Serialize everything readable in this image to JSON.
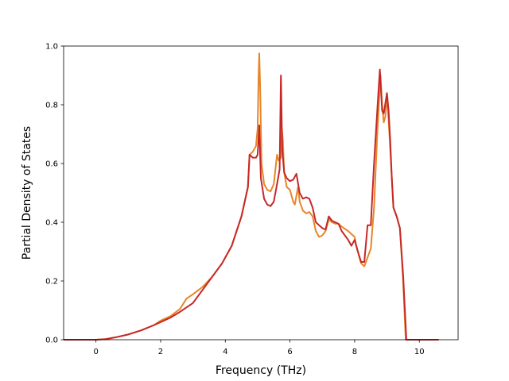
{
  "chart_data": {
    "type": "line",
    "title": "",
    "xlabel": "Frequency (THz)",
    "ylabel": "Partial Density of States",
    "xlim": [
      -1.0,
      11.2
    ],
    "ylim": [
      0.0,
      1.0
    ],
    "xticks": [
      0,
      2,
      4,
      6,
      8,
      10
    ],
    "yticks": [
      0.0,
      0.2,
      0.4,
      0.6,
      0.8,
      1.0
    ],
    "xtick_labels": [
      "0",
      "2",
      "4",
      "6",
      "8",
      "10"
    ],
    "ytick_labels": [
      "0.0",
      "0.2",
      "0.4",
      "0.6",
      "0.8",
      "1.0"
    ],
    "grid": false,
    "legend": "none",
    "series": [
      {
        "color": "#e6862a",
        "points": [
          [
            -1.0,
            0.0
          ],
          [
            0.0,
            0.0
          ],
          [
            0.3,
            0.002
          ],
          [
            0.6,
            0.008
          ],
          [
            1.0,
            0.018
          ],
          [
            1.4,
            0.032
          ],
          [
            1.8,
            0.05
          ],
          [
            2.0,
            0.065
          ],
          [
            2.3,
            0.08
          ],
          [
            2.6,
            0.105
          ],
          [
            2.8,
            0.14
          ],
          [
            3.0,
            0.155
          ],
          [
            3.3,
            0.18
          ],
          [
            3.6,
            0.215
          ],
          [
            3.9,
            0.26
          ],
          [
            4.2,
            0.32
          ],
          [
            4.5,
            0.42
          ],
          [
            4.7,
            0.52
          ],
          [
            4.75,
            0.63
          ],
          [
            4.85,
            0.64
          ],
          [
            4.95,
            0.66
          ],
          [
            5.0,
            0.72
          ],
          [
            5.03,
            0.9
          ],
          [
            5.05,
            0.975
          ],
          [
            5.08,
            0.85
          ],
          [
            5.12,
            0.6
          ],
          [
            5.2,
            0.53
          ],
          [
            5.3,
            0.51
          ],
          [
            5.4,
            0.505
          ],
          [
            5.5,
            0.53
          ],
          [
            5.55,
            0.58
          ],
          [
            5.6,
            0.63
          ],
          [
            5.65,
            0.61
          ],
          [
            5.72,
            0.62
          ],
          [
            5.75,
            0.72
          ],
          [
            5.78,
            0.68
          ],
          [
            5.82,
            0.57
          ],
          [
            5.9,
            0.52
          ],
          [
            6.0,
            0.51
          ],
          [
            6.1,
            0.47
          ],
          [
            6.15,
            0.46
          ],
          [
            6.25,
            0.52
          ],
          [
            6.3,
            0.47
          ],
          [
            6.4,
            0.44
          ],
          [
            6.5,
            0.43
          ],
          [
            6.6,
            0.435
          ],
          [
            6.7,
            0.42
          ],
          [
            6.8,
            0.37
          ],
          [
            6.9,
            0.35
          ],
          [
            7.0,
            0.355
          ],
          [
            7.1,
            0.37
          ],
          [
            7.2,
            0.41
          ],
          [
            7.3,
            0.4
          ],
          [
            7.4,
            0.395
          ],
          [
            7.5,
            0.395
          ],
          [
            7.6,
            0.385
          ],
          [
            7.8,
            0.37
          ],
          [
            7.9,
            0.36
          ],
          [
            8.0,
            0.35
          ],
          [
            8.05,
            0.32
          ],
          [
            8.1,
            0.3
          ],
          [
            8.2,
            0.26
          ],
          [
            8.3,
            0.25
          ],
          [
            8.4,
            0.28
          ],
          [
            8.5,
            0.31
          ],
          [
            8.6,
            0.45
          ],
          [
            8.7,
            0.7
          ],
          [
            8.8,
            0.9
          ],
          [
            8.85,
            0.8
          ],
          [
            8.9,
            0.74
          ],
          [
            8.95,
            0.76
          ],
          [
            9.0,
            0.83
          ],
          [
            9.05,
            0.75
          ],
          [
            9.1,
            0.65
          ],
          [
            9.15,
            0.55
          ],
          [
            9.2,
            0.45
          ],
          [
            9.3,
            0.42
          ],
          [
            9.4,
            0.38
          ],
          [
            9.5,
            0.2
          ],
          [
            9.58,
            0.0
          ],
          [
            10.6,
            0.0
          ]
        ]
      },
      {
        "color": "#c62828",
        "points": [
          [
            -1.0,
            0.0
          ],
          [
            0.0,
            0.0
          ],
          [
            0.3,
            0.002
          ],
          [
            0.6,
            0.008
          ],
          [
            1.0,
            0.018
          ],
          [
            1.4,
            0.032
          ],
          [
            1.8,
            0.05
          ],
          [
            2.0,
            0.06
          ],
          [
            2.3,
            0.075
          ],
          [
            2.6,
            0.095
          ],
          [
            2.8,
            0.11
          ],
          [
            3.0,
            0.125
          ],
          [
            3.3,
            0.17
          ],
          [
            3.6,
            0.215
          ],
          [
            3.9,
            0.26
          ],
          [
            4.2,
            0.32
          ],
          [
            4.5,
            0.42
          ],
          [
            4.7,
            0.52
          ],
          [
            4.75,
            0.63
          ],
          [
            4.85,
            0.62
          ],
          [
            4.95,
            0.62
          ],
          [
            5.0,
            0.63
          ],
          [
            5.05,
            0.73
          ],
          [
            5.1,
            0.55
          ],
          [
            5.2,
            0.48
          ],
          [
            5.3,
            0.46
          ],
          [
            5.4,
            0.455
          ],
          [
            5.5,
            0.47
          ],
          [
            5.6,
            0.53
          ],
          [
            5.68,
            0.58
          ],
          [
            5.72,
            0.9
          ],
          [
            5.76,
            0.65
          ],
          [
            5.82,
            0.57
          ],
          [
            5.9,
            0.55
          ],
          [
            6.0,
            0.54
          ],
          [
            6.1,
            0.545
          ],
          [
            6.2,
            0.565
          ],
          [
            6.3,
            0.5
          ],
          [
            6.4,
            0.48
          ],
          [
            6.5,
            0.485
          ],
          [
            6.6,
            0.48
          ],
          [
            6.7,
            0.45
          ],
          [
            6.8,
            0.4
          ],
          [
            6.9,
            0.39
          ],
          [
            7.0,
            0.38
          ],
          [
            7.1,
            0.375
          ],
          [
            7.2,
            0.42
          ],
          [
            7.3,
            0.405
          ],
          [
            7.4,
            0.4
          ],
          [
            7.5,
            0.395
          ],
          [
            7.6,
            0.37
          ],
          [
            7.8,
            0.34
          ],
          [
            7.9,
            0.32
          ],
          [
            8.0,
            0.34
          ],
          [
            8.1,
            0.3
          ],
          [
            8.2,
            0.265
          ],
          [
            8.3,
            0.265
          ],
          [
            8.4,
            0.39
          ],
          [
            8.5,
            0.39
          ],
          [
            8.6,
            0.6
          ],
          [
            8.7,
            0.78
          ],
          [
            8.78,
            0.92
          ],
          [
            8.85,
            0.78
          ],
          [
            8.9,
            0.77
          ],
          [
            9.0,
            0.84
          ],
          [
            9.05,
            0.78
          ],
          [
            9.1,
            0.68
          ],
          [
            9.15,
            0.55
          ],
          [
            9.2,
            0.45
          ],
          [
            9.3,
            0.42
          ],
          [
            9.4,
            0.38
          ],
          [
            9.5,
            0.22
          ],
          [
            9.6,
            0.0
          ],
          [
            10.6,
            0.0
          ]
        ]
      }
    ]
  }
}
